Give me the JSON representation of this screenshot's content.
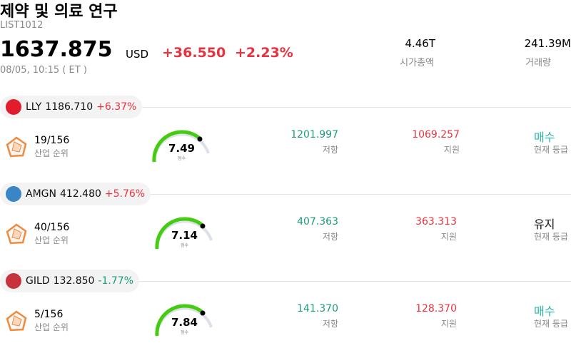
{
  "header": {
    "title": "제약 및 의료 연구",
    "code": "LIST1012",
    "price": "1637.875",
    "currency": "USD",
    "change": "+36.550",
    "change_pct": "+2.23%",
    "change_color": "#e8333f",
    "time": "08/05, 10:15 ( ET )",
    "stats": [
      {
        "value": "4.46T",
        "label": "시가총액"
      },
      {
        "value": "241.39M",
        "label": "거래량"
      }
    ]
  },
  "stocks": [
    {
      "ticker": "LLY",
      "price": "1186.710",
      "change": "+6.37%",
      "change_color": "#e8333f",
      "logo_color": "#e31c2d",
      "rank": "19/156",
      "rank_label": "산업 순위",
      "score": "7.49",
      "score_label": "점수",
      "resistance": "1201.997",
      "resistance_label": "저항",
      "support": "1069.257",
      "support_label": "지원",
      "rating": "매수",
      "rating_color": "#2bb5a9",
      "rating_label": "현재 등급"
    },
    {
      "ticker": "AMGN",
      "price": "412.480",
      "change": "+5.76%",
      "change_color": "#e8333f",
      "logo_color": "#3a85c6",
      "rank": "40/156",
      "rank_label": "산업 순위",
      "score": "7.14",
      "score_label": "점수",
      "resistance": "407.363",
      "resistance_label": "저항",
      "support": "363.313",
      "support_label": "지원",
      "rating": "유지",
      "rating_color": "#111111",
      "rating_label": "현재 등급"
    },
    {
      "ticker": "GILD",
      "price": "132.850",
      "change": "-1.77%",
      "change_color": "#1a9c7c",
      "logo_color": "#c8323c",
      "rank": "5/156",
      "rank_label": "산업 순위",
      "score": "7.84",
      "score_label": "점수",
      "resistance": "141.370",
      "resistance_label": "저항",
      "support": "128.370",
      "support_label": "지원",
      "rating": "매수",
      "rating_color": "#2bb5a9",
      "rating_label": "현재 등급"
    }
  ]
}
